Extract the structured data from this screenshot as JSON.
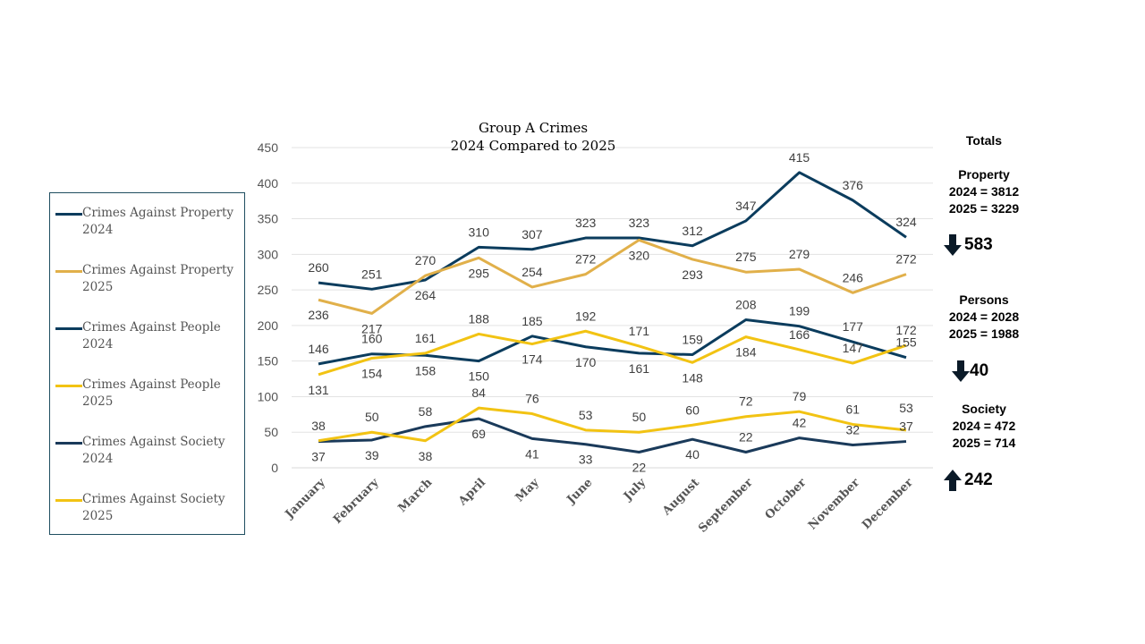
{
  "chart_data": {
    "type": "line",
    "title": "Group A Crimes\n2024 Compared to 2025",
    "title_lines": [
      "Group A Crimes",
      "2024 Compared to 2025"
    ],
    "categories": [
      "January",
      "February",
      "March",
      "April",
      "May",
      "June",
      "July",
      "August",
      "September",
      "October",
      "November",
      "December"
    ],
    "ylim": [
      0,
      450
    ],
    "yticks": [
      0,
      50,
      100,
      150,
      200,
      250,
      300,
      350,
      400,
      450
    ],
    "grid": true,
    "legend_position": "left",
    "data_labels": true,
    "series": [
      {
        "name": "Crimes Against Property 2024",
        "color": "#0b3c5d",
        "values": [
          260,
          251,
          264,
          310,
          307,
          323,
          323,
          312,
          347,
          415,
          376,
          324
        ]
      },
      {
        "name": "Crimes Against Property 2025",
        "color": "#e1b04a",
        "values": [
          236,
          217,
          270,
          295,
          254,
          272,
          320,
          293,
          275,
          279,
          246,
          272
        ]
      },
      {
        "name": "Crimes Against People 2024",
        "color": "#0b3c5d",
        "values": [
          146,
          160,
          158,
          150,
          185,
          170,
          161,
          159,
          208,
          199,
          177,
          155
        ]
      },
      {
        "name": "Crimes Against People 2025",
        "color": "#f2c313",
        "values": [
          131,
          154,
          161,
          188,
          174,
          192,
          171,
          148,
          184,
          166,
          147,
          172
        ]
      },
      {
        "name": "Crimes Against Society 2024",
        "color": "#1a3a5a",
        "values": [
          37,
          39,
          58,
          69,
          41,
          33,
          22,
          40,
          22,
          42,
          32,
          37
        ]
      },
      {
        "name": "Crimes Against Society 2025",
        "color": "#f2c313",
        "values": [
          38,
          50,
          38,
          84,
          76,
          53,
          50,
          60,
          72,
          79,
          61,
          53
        ]
      }
    ]
  },
  "legend": [
    {
      "line1": "Crimes Against Property",
      "line2": "2024"
    },
    {
      "line1": "Crimes Against Property",
      "line2": "2025"
    },
    {
      "line1": "Crimes Against People",
      "line2": "2024"
    },
    {
      "line1": "Crimes Against People",
      "line2": "2025"
    },
    {
      "line1": "Crimes Against Society",
      "line2": "2024"
    },
    {
      "line1": "Crimes Against Society",
      "line2": "2025"
    }
  ],
  "totals": {
    "heading": "Totals",
    "groups": [
      {
        "name": "Property",
        "y2024": "2024 = 3812",
        "y2025": "2025 = 3229",
        "direction": "down",
        "delta": "583"
      },
      {
        "name": "Persons",
        "y2024": "2024 = 2028",
        "y2025": "2025 = 1988",
        "direction": "down",
        "delta": "40"
      },
      {
        "name": "Society",
        "y2024": "2024 = 472",
        "y2025": "2025 = 714",
        "direction": "up",
        "delta": "242"
      }
    ]
  }
}
